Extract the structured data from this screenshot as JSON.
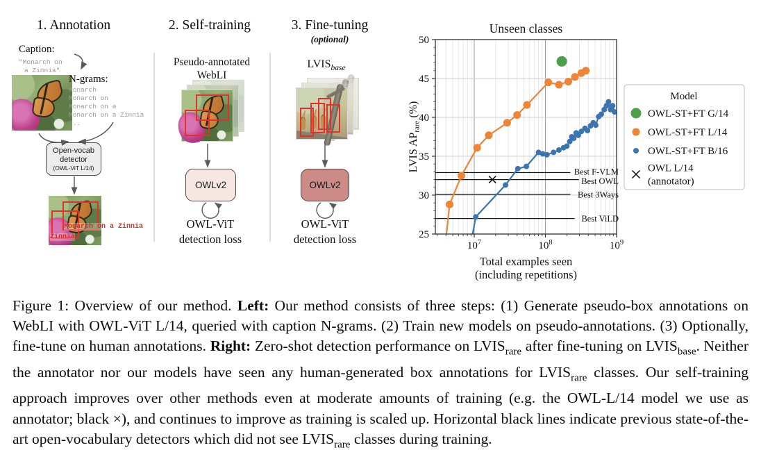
{
  "figure": {
    "steps": {
      "annotation": {
        "title": "1. Annotation",
        "caption_label": "Caption:",
        "caption_lines": [
          "\"Monarch on",
          "a Zinnia\""
        ],
        "ngrams_label": "N-grams:",
        "ngrams": [
          "Monarch",
          "Monarch on",
          "Monarch on a",
          "Monarch on a Zinnia",
          "..."
        ],
        "detector_lines": [
          "Open-vocab",
          "detector",
          "(OWL-ViT L/14)"
        ],
        "detection_labels": [
          "Monarch on a Zinnia",
          "Zinnia"
        ]
      },
      "self_training": {
        "title": "2. Self-training",
        "dataset_lines": [
          "Pseudo-annotated",
          "WebLI"
        ],
        "model_label": "OWLv2",
        "model_box_color": "#f6e7e3",
        "loss_lines": [
          "OWL-ViT",
          "detection loss"
        ]
      },
      "fine_tuning": {
        "title": "3. Fine-tuning",
        "subtitle": "(optional)",
        "dataset_name": "LVIS",
        "dataset_subscript": "base",
        "model_label": "OWLv2",
        "model_box_color": "#cd8b87",
        "loss_lines": [
          "OWL-ViT",
          "detection loss"
        ]
      }
    },
    "colors": {
      "detection_box_red": "#e0312a",
      "arrow_gray": "#5a5a5a"
    }
  },
  "chart_data": {
    "type": "line-scatter",
    "title": "Unseen classes",
    "xlabel_lines": [
      "Total examples seen",
      "(including repetitions)"
    ],
    "ylabel": {
      "pre": "LVIS AP",
      "sub": "rare",
      "post": " (%)"
    },
    "xscale": "log",
    "xlim": [
      2800000.0,
      1000000000.0
    ],
    "ylim": [
      25,
      50
    ],
    "xticks": [
      10000000.0,
      100000000.0,
      1000000000.0
    ],
    "yticks": [
      25,
      30,
      35,
      40,
      45,
      50
    ],
    "grid": true,
    "legend": {
      "title": "Model",
      "position": "right"
    },
    "series": [
      {
        "name": "OWL-ST+FT G/14",
        "color": "#4aa047",
        "marker_size": 7.5,
        "line": false,
        "points": [
          [
            170000000.0,
            47.2
          ]
        ]
      },
      {
        "name": "OWL-ST+FT L/14",
        "color": "#ee8435",
        "marker_size": 5.5,
        "line": true,
        "points": [
          [
            4000000.0,
            24.3
          ],
          [
            4500000.0,
            28.8
          ],
          [
            6600000.0,
            32.5
          ],
          [
            11000000.0,
            36.1
          ],
          [
            16000000.0,
            37.7
          ],
          [
            29000000.0,
            39.3
          ],
          [
            40000000.0,
            40.3
          ],
          [
            55000000.0,
            41.6
          ],
          [
            110000000.0,
            44.5
          ],
          [
            155000000.0,
            44.2
          ],
          [
            210000000.0,
            44.6
          ],
          [
            260000000.0,
            45.2
          ],
          [
            320000000.0,
            45.7
          ],
          [
            370000000.0,
            46.0
          ]
        ]
      },
      {
        "name": "OWL-ST+FT B/16",
        "color": "#3b75af",
        "marker_size": 4,
        "line": true,
        "points": [
          [
            9000000.0,
            23.8
          ],
          [
            10500000.0,
            27.2
          ],
          [
            27500000.0,
            31.3
          ],
          [
            41000000.0,
            33.4
          ],
          [
            54000000.0,
            33.7
          ],
          [
            80000000.0,
            35.5
          ],
          [
            92000000.0,
            35.3
          ],
          [
            105000000.0,
            35.2
          ],
          [
            130000000.0,
            35.5
          ],
          [
            155000000.0,
            35.8
          ],
          [
            180000000.0,
            36.1
          ],
          [
            200000000.0,
            36.3
          ],
          [
            220000000.0,
            36.9
          ],
          [
            235000000.0,
            37.5
          ],
          [
            250000000.0,
            37.3
          ],
          [
            270000000.0,
            38.0
          ],
          [
            290000000.0,
            37.7
          ],
          [
            320000000.0,
            38.2
          ],
          [
            360000000.0,
            38.6
          ],
          [
            390000000.0,
            38.3
          ],
          [
            430000000.0,
            38.9
          ],
          [
            470000000.0,
            39.3
          ],
          [
            510000000.0,
            39.0
          ],
          [
            560000000.0,
            40.1
          ],
          [
            610000000.0,
            40.4
          ],
          [
            670000000.0,
            41.0
          ],
          [
            720000000.0,
            41.5
          ],
          [
            770000000.0,
            42.0
          ],
          [
            820000000.0,
            41.0
          ],
          [
            880000000.0,
            41.5
          ],
          [
            940000000.0,
            40.7
          ]
        ]
      },
      {
        "name": "OWL L/14 (annotator)",
        "label_lines": [
          "OWL L/14",
          "(annotator)"
        ],
        "color": "#111111",
        "marker": "x",
        "points": [
          [
            18000000.0,
            32.0
          ]
        ]
      }
    ],
    "baselines": [
      {
        "label": "Best F-VLM",
        "value": 32.9
      },
      {
        "label": "Best OWL",
        "value": 32.0
      },
      {
        "label": "Best 3Ways",
        "value": 30.1
      },
      {
        "label": "Best ViLD",
        "value": 27.0
      }
    ]
  },
  "caption": {
    "segments": [
      {
        "t": "Figure 1: Overview of our method. "
      },
      {
        "t": "Left:",
        "b": true
      },
      {
        "t": " Our method consists of three steps: (1) Generate pseudo-box annotations on WebLI with OWL-ViT L/14, queried with caption N-grams. (2) Train new models on pseudo-annotations. (3) Optionally, fine-tune on human annotations. "
      },
      {
        "t": "Right:",
        "b": true
      },
      {
        "t": " Zero-shot detection performance on LVIS"
      },
      {
        "t": "rare",
        "sub": true
      },
      {
        "t": " after fine-tuning on LVIS"
      },
      {
        "t": "base",
        "sub": true
      },
      {
        "t": ". Neither the annotator nor our models have seen any human-generated box annotations for LVIS"
      },
      {
        "t": "rare",
        "sub": true
      },
      {
        "t": " classes. Our self-training approach improves over other methods even at moderate amounts of training (e.g. the OWL-L/14 model we use as annotator; black ×), and continues to improve as training is scaled up. Horizontal black lines indicate previous state-of-the-art open-vocabulary detectors which did not see LVIS"
      },
      {
        "t": "rare",
        "sub": true
      },
      {
        "t": " classes during training."
      }
    ]
  }
}
